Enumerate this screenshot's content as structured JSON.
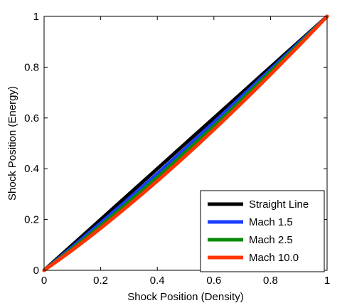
{
  "chart_data": {
    "type": "line",
    "title": "",
    "xlabel": "Shock Position (Density)",
    "ylabel": "Shock Position (Energy)",
    "xlim": [
      0,
      1
    ],
    "ylim": [
      0,
      1
    ],
    "xticks": [
      0,
      0.2,
      0.4,
      0.6,
      0.8,
      1
    ],
    "yticks": [
      0,
      0.2,
      0.4,
      0.6,
      0.8,
      1
    ],
    "xtick_labels": [
      "0",
      "0.2",
      "0.4",
      "0.6",
      "0.8",
      "1"
    ],
    "ytick_labels": [
      "0",
      "0.2",
      "0.4",
      "0.6",
      "0.8",
      "1"
    ],
    "grid": false,
    "legend_position": "bottom-right",
    "x": [
      0,
      0.1,
      0.2,
      0.3,
      0.4,
      0.5,
      0.6,
      0.7,
      0.8,
      0.9,
      1.0
    ],
    "series": [
      {
        "name": "Straight Line",
        "color": "#000000",
        "y": [
          0,
          0.1,
          0.2,
          0.3,
          0.4,
          0.5,
          0.6,
          0.7,
          0.8,
          0.9,
          1.0
        ]
      },
      {
        "name": "Mach 1.5",
        "color": "#1a3cff",
        "y": [
          0,
          0.092,
          0.186,
          0.282,
          0.38,
          0.48,
          0.582,
          0.686,
          0.79,
          0.895,
          1.0
        ]
      },
      {
        "name": "Mach 2.5",
        "color": "#0a8a0a",
        "y": [
          0,
          0.086,
          0.176,
          0.27,
          0.366,
          0.466,
          0.568,
          0.674,
          0.782,
          0.89,
          1.0
        ]
      },
      {
        "name": "Mach 10.0",
        "color": "#ff3300",
        "y": [
          0,
          0.08,
          0.166,
          0.257,
          0.352,
          0.451,
          0.554,
          0.661,
          0.771,
          0.884,
          1.0
        ]
      }
    ]
  }
}
